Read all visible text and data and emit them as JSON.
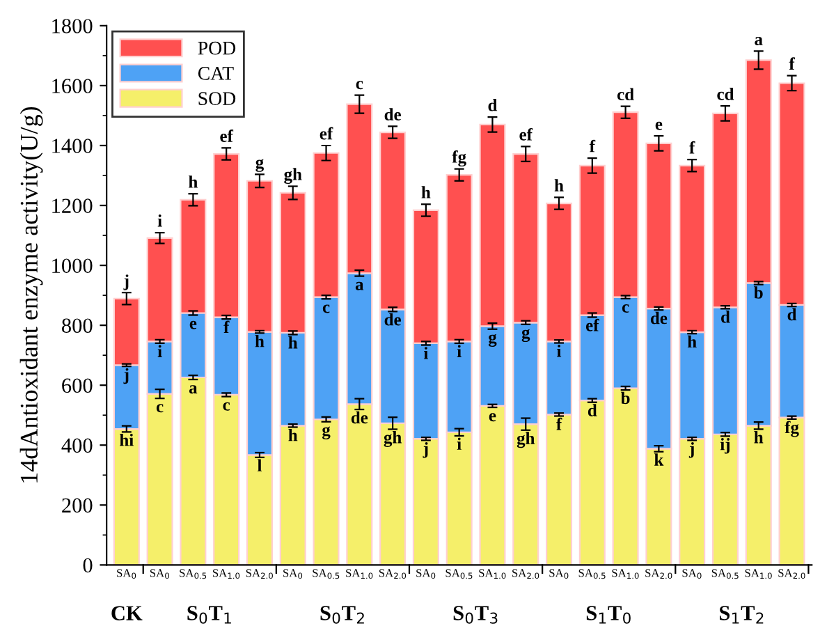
{
  "chart_data": {
    "type": "bar",
    "stacked": true,
    "ylabel": "14dAntioxidant enzyme activity(U/g)",
    "categories": [
      "SA$_{0}$",
      "SA$_{0}$",
      "SA$_{0.5}$",
      "SA$_{1.0}$",
      "SA$_{2.0}$",
      "SA$_{0}$",
      "SA$_{0.5}$",
      "SA$_{1.0}$",
      "SA$_{2.0}$",
      "SA$_{0}$",
      "SA$_{0.5}$",
      "SA$_{1.0}$",
      "SA$_{2.0}$",
      "SA$_{0}$",
      "SA$_{0.5}$",
      "SA$_{1.0}$",
      "SA$_{2.0}$",
      "SA$_{0}$",
      "SA$_{0.5}$",
      "SA$_{1.0}$",
      "SA$_{2.0}$"
    ],
    "annotations": [
      "CK",
      "S$_{0}$T$_{1}$",
      "S$_{0}$T$_{2}$",
      "S$_{0}$T$_{3}$",
      "S$_{1}$T$_{0}$",
      "S$_{1}$T$_{2}$"
    ],
    "series": [
      {
        "name": "SOD",
        "color": "#f5ef6a",
        "values": [
          454,
          571,
          626,
          568,
          367,
          465,
          486,
          537,
          473,
          421,
          443,
          531,
          470,
          502,
          549,
          590,
          388,
          421,
          436,
          465,
          492
        ],
        "errors": [
          10,
          15,
          7,
          6,
          8,
          5,
          8,
          18,
          20,
          5,
          12,
          5,
          20,
          5,
          6,
          6,
          10,
          5,
          6,
          12,
          5
        ],
        "value_labels": [
          "hi",
          "c",
          "a",
          "c",
          "l",
          "h",
          "g",
          "de",
          "gh",
          "j",
          "i",
          "e",
          "gh",
          "f",
          "d",
          "b",
          "k",
          "j",
          "ij",
          "h",
          "fg"
        ]
      },
      {
        "name": "CAT",
        "color": "#4ea2f5",
        "values": [
          213,
          175,
          215,
          259,
          411,
          310,
          408,
          437,
          380,
          319,
          303,
          266,
          339,
          244,
          285,
          304,
          468,
          356,
          424,
          476,
          376
        ],
        "errors": [
          4,
          6,
          7,
          6,
          4,
          6,
          6,
          10,
          7,
          6,
          6,
          10,
          6,
          5,
          7,
          5,
          5,
          5,
          5,
          5,
          5
        ],
        "value_labels": [
          "j",
          "i",
          "e",
          "f",
          "h",
          "h",
          "c",
          "a",
          "de",
          "i",
          "i",
          "g",
          "g",
          "i",
          "ef",
          "c",
          "de",
          "h",
          "d",
          "b",
          "d"
        ]
      },
      {
        "name": "POD",
        "color": "#ff5050",
        "values": [
          222,
          345,
          378,
          545,
          504,
          467,
          481,
          564,
          591,
          444,
          556,
          673,
          563,
          461,
          499,
          617,
          551,
          556,
          647,
          744,
          740
        ],
        "errors": [
          20,
          18,
          20,
          20,
          22,
          22,
          25,
          30,
          20,
          20,
          20,
          25,
          25,
          20,
          25,
          20,
          25,
          20,
          25,
          30,
          25
        ],
        "value_labels": [
          "j",
          "i",
          "h",
          "ef",
          "g",
          "gh",
          "ef",
          "c",
          "de",
          "h",
          "fg",
          "d",
          "ef",
          "h",
          "f",
          "cd",
          "e",
          "f",
          "cd",
          "a",
          "f"
        ]
      }
    ],
    "ylim": [
      0,
      1800
    ],
    "yticks": [
      0,
      200,
      400,
      600,
      800,
      1000,
      1200,
      1400,
      1600,
      1800
    ],
    "legend": "top left",
    "grid": false
  }
}
